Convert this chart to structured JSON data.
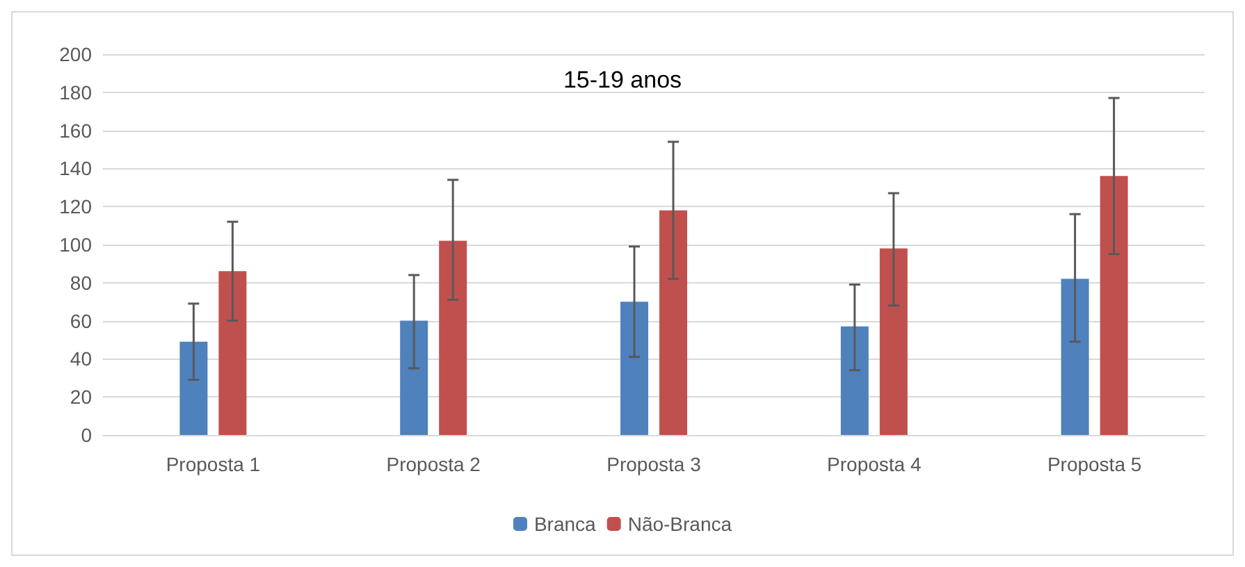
{
  "chart_data": {
    "type": "bar",
    "title": "15-19 anos",
    "categories": [
      "Proposta 1",
      "Proposta 2",
      "Proposta 3",
      "Proposta 4",
      "Proposta 5"
    ],
    "series": [
      {
        "name": "Branca",
        "color": "#4f81bd",
        "values": [
          49,
          60,
          70,
          57,
          82
        ],
        "errors": [
          [
            29,
            69
          ],
          [
            35,
            84
          ],
          [
            41,
            99
          ],
          [
            34,
            79
          ],
          [
            49,
            116
          ]
        ]
      },
      {
        "name": "Não-Branca",
        "color": "#c0504d",
        "values": [
          86,
          102,
          118,
          98,
          136
        ],
        "errors": [
          [
            60,
            112
          ],
          [
            71,
            134
          ],
          [
            82,
            154
          ],
          [
            68,
            127
          ],
          [
            95,
            177
          ]
        ]
      }
    ],
    "ylim": [
      0,
      200
    ],
    "yticks": [
      0,
      20,
      40,
      60,
      80,
      100,
      120,
      140,
      160,
      180,
      200
    ],
    "grid": "y",
    "legend": "bottom"
  }
}
